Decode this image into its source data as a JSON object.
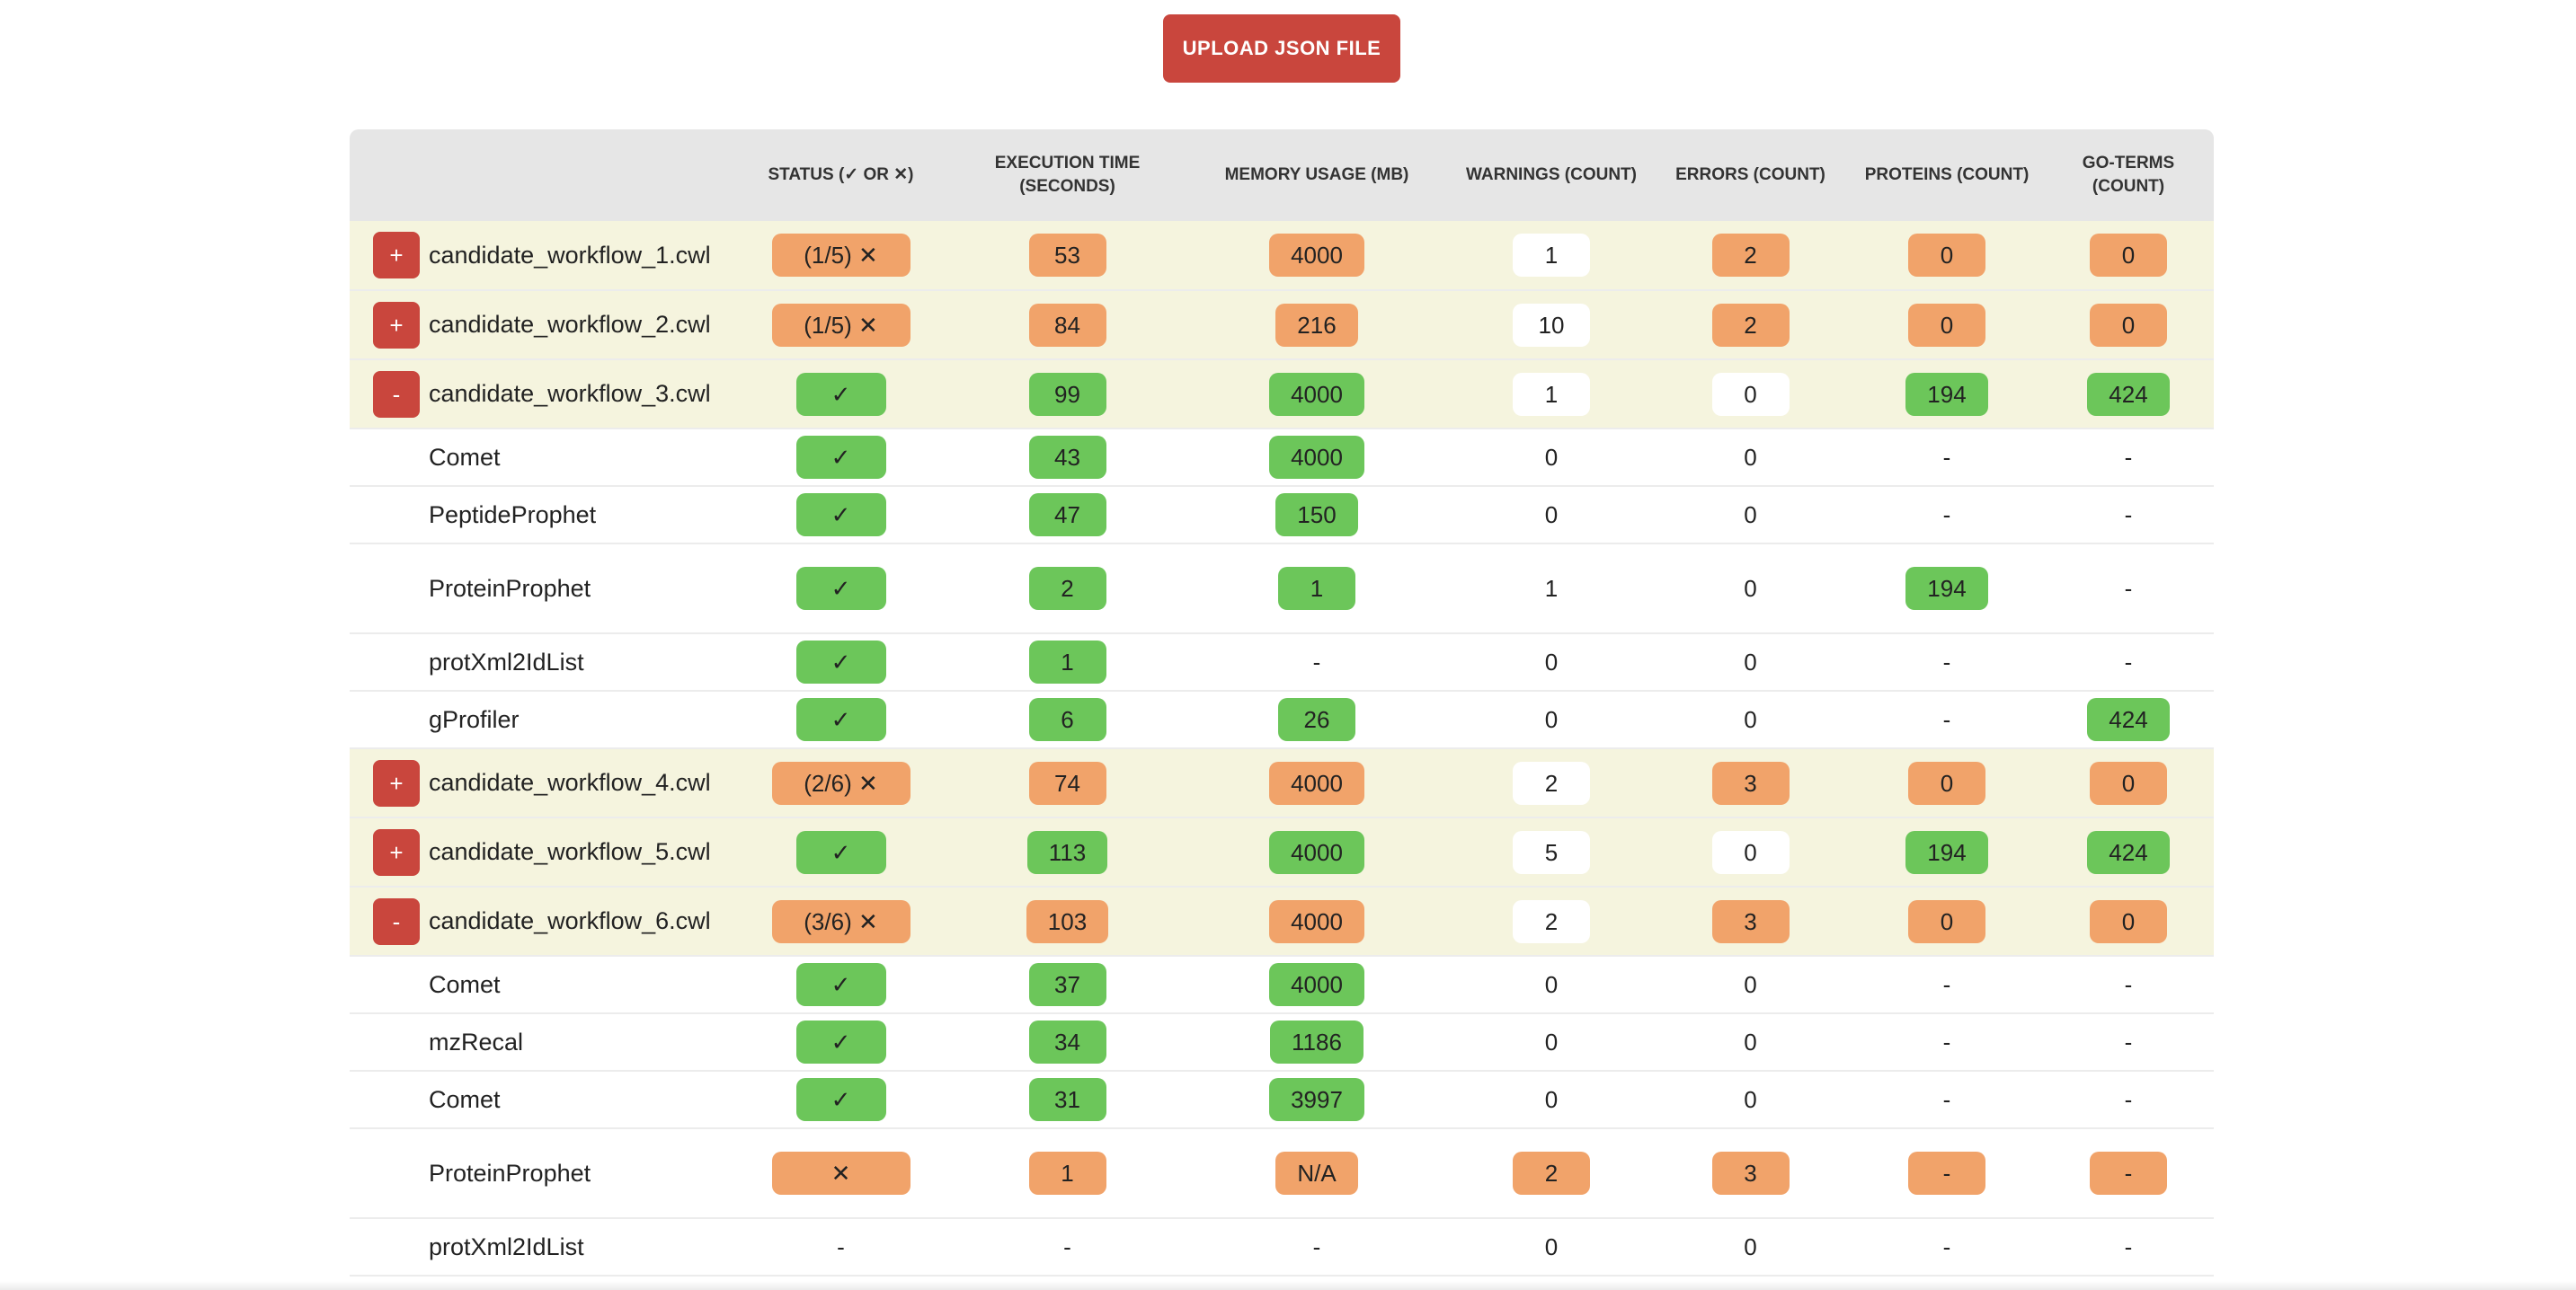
{
  "upload_button": "UPLOAD JSON FILE",
  "colors": {
    "accent": "#c9463d",
    "ok": "#6cc65a",
    "warn": "#f1a36a",
    "workflow_row": "#f5f4de",
    "header": "#e6e6e6"
  },
  "headers": {
    "status": "STATUS (✓ OR ✕)",
    "exec": "EXECUTION TIME (SECONDS)",
    "mem": "MEMORY USAGE (MB)",
    "warn": "WARNINGS (COUNT)",
    "err": "ERRORS (COUNT)",
    "prot": "PROTEINS (COUNT)",
    "go": "GO-TERMS (COUNT)"
  },
  "rows": [
    {
      "kind": "workflow",
      "toggle": "+",
      "name": "candidate_workflow_1.cwl",
      "status": {
        "t": "(1/5) ✕",
        "c": "orange"
      },
      "exec": {
        "t": "53",
        "c": "orange"
      },
      "mem": {
        "t": "4000",
        "c": "orange"
      },
      "warn": {
        "t": "1",
        "c": "white"
      },
      "err": {
        "t": "2",
        "c": "orange"
      },
      "prot": {
        "t": "0",
        "c": "orange"
      },
      "go": {
        "t": "0",
        "c": "orange"
      }
    },
    {
      "kind": "workflow",
      "toggle": "+",
      "name": "candidate_workflow_2.cwl",
      "status": {
        "t": "(1/5) ✕",
        "c": "orange"
      },
      "exec": {
        "t": "84",
        "c": "orange"
      },
      "mem": {
        "t": "216",
        "c": "orange"
      },
      "warn": {
        "t": "10",
        "c": "white"
      },
      "err": {
        "t": "2",
        "c": "orange"
      },
      "prot": {
        "t": "0",
        "c": "orange"
      },
      "go": {
        "t": "0",
        "c": "orange"
      }
    },
    {
      "kind": "workflow",
      "toggle": "-",
      "name": "candidate_workflow_3.cwl",
      "status": {
        "t": "✓",
        "c": "green"
      },
      "exec": {
        "t": "99",
        "c": "green"
      },
      "mem": {
        "t": "4000",
        "c": "green"
      },
      "warn": {
        "t": "1",
        "c": "white"
      },
      "err": {
        "t": "0",
        "c": "white"
      },
      "prot": {
        "t": "194",
        "c": "green"
      },
      "go": {
        "t": "424",
        "c": "green"
      }
    },
    {
      "kind": "step",
      "name": "Comet",
      "status": {
        "t": "✓",
        "c": "green"
      },
      "exec": {
        "t": "43",
        "c": "green"
      },
      "mem": {
        "t": "4000",
        "c": "green"
      },
      "warn": {
        "t": "0",
        "c": ""
      },
      "err": {
        "t": "0",
        "c": ""
      },
      "prot": {
        "t": "-",
        "c": ""
      },
      "go": {
        "t": "-",
        "c": ""
      }
    },
    {
      "kind": "step",
      "name": "PeptideProphet",
      "status": {
        "t": "✓",
        "c": "green"
      },
      "exec": {
        "t": "47",
        "c": "green"
      },
      "mem": {
        "t": "150",
        "c": "green"
      },
      "warn": {
        "t": "0",
        "c": ""
      },
      "err": {
        "t": "0",
        "c": ""
      },
      "prot": {
        "t": "-",
        "c": ""
      },
      "go": {
        "t": "-",
        "c": ""
      }
    },
    {
      "kind": "step-tall",
      "name": "ProteinProphet",
      "status": {
        "t": "✓",
        "c": "green"
      },
      "exec": {
        "t": "2",
        "c": "green"
      },
      "mem": {
        "t": "1",
        "c": "green"
      },
      "warn": {
        "t": "1",
        "c": ""
      },
      "err": {
        "t": "0",
        "c": ""
      },
      "prot": {
        "t": "194",
        "c": "green"
      },
      "go": {
        "t": "-",
        "c": ""
      }
    },
    {
      "kind": "step",
      "name": "protXml2IdList",
      "status": {
        "t": "✓",
        "c": "green"
      },
      "exec": {
        "t": "1",
        "c": "green"
      },
      "mem": {
        "t": "-",
        "c": ""
      },
      "warn": {
        "t": "0",
        "c": ""
      },
      "err": {
        "t": "0",
        "c": ""
      },
      "prot": {
        "t": "-",
        "c": ""
      },
      "go": {
        "t": "-",
        "c": ""
      }
    },
    {
      "kind": "step",
      "name": "gProfiler",
      "status": {
        "t": "✓",
        "c": "green"
      },
      "exec": {
        "t": "6",
        "c": "green"
      },
      "mem": {
        "t": "26",
        "c": "green"
      },
      "warn": {
        "t": "0",
        "c": ""
      },
      "err": {
        "t": "0",
        "c": ""
      },
      "prot": {
        "t": "-",
        "c": ""
      },
      "go": {
        "t": "424",
        "c": "green"
      }
    },
    {
      "kind": "workflow",
      "toggle": "+",
      "name": "candidate_workflow_4.cwl",
      "status": {
        "t": "(2/6) ✕",
        "c": "orange"
      },
      "exec": {
        "t": "74",
        "c": "orange"
      },
      "mem": {
        "t": "4000",
        "c": "orange"
      },
      "warn": {
        "t": "2",
        "c": "white"
      },
      "err": {
        "t": "3",
        "c": "orange"
      },
      "prot": {
        "t": "0",
        "c": "orange"
      },
      "go": {
        "t": "0",
        "c": "orange"
      }
    },
    {
      "kind": "workflow",
      "toggle": "+",
      "name": "candidate_workflow_5.cwl",
      "status": {
        "t": "✓",
        "c": "green"
      },
      "exec": {
        "t": "113",
        "c": "green"
      },
      "mem": {
        "t": "4000",
        "c": "green"
      },
      "warn": {
        "t": "5",
        "c": "white"
      },
      "err": {
        "t": "0",
        "c": "white"
      },
      "prot": {
        "t": "194",
        "c": "green"
      },
      "go": {
        "t": "424",
        "c": "green"
      }
    },
    {
      "kind": "workflow",
      "toggle": "-",
      "name": "candidate_workflow_6.cwl",
      "status": {
        "t": "(3/6) ✕",
        "c": "orange"
      },
      "exec": {
        "t": "103",
        "c": "orange"
      },
      "mem": {
        "t": "4000",
        "c": "orange"
      },
      "warn": {
        "t": "2",
        "c": "white"
      },
      "err": {
        "t": "3",
        "c": "orange"
      },
      "prot": {
        "t": "0",
        "c": "orange"
      },
      "go": {
        "t": "0",
        "c": "orange"
      }
    },
    {
      "kind": "step",
      "name": "Comet",
      "status": {
        "t": "✓",
        "c": "green"
      },
      "exec": {
        "t": "37",
        "c": "green"
      },
      "mem": {
        "t": "4000",
        "c": "green"
      },
      "warn": {
        "t": "0",
        "c": ""
      },
      "err": {
        "t": "0",
        "c": ""
      },
      "prot": {
        "t": "-",
        "c": ""
      },
      "go": {
        "t": "-",
        "c": ""
      }
    },
    {
      "kind": "step",
      "name": "mzRecal",
      "status": {
        "t": "✓",
        "c": "green"
      },
      "exec": {
        "t": "34",
        "c": "green"
      },
      "mem": {
        "t": "1186",
        "c": "green"
      },
      "warn": {
        "t": "0",
        "c": ""
      },
      "err": {
        "t": "0",
        "c": ""
      },
      "prot": {
        "t": "-",
        "c": ""
      },
      "go": {
        "t": "-",
        "c": ""
      }
    },
    {
      "kind": "step",
      "name": "Comet",
      "status": {
        "t": "✓",
        "c": "green"
      },
      "exec": {
        "t": "31",
        "c": "green"
      },
      "mem": {
        "t": "3997",
        "c": "green"
      },
      "warn": {
        "t": "0",
        "c": ""
      },
      "err": {
        "t": "0",
        "c": ""
      },
      "prot": {
        "t": "-",
        "c": ""
      },
      "go": {
        "t": "-",
        "c": ""
      }
    },
    {
      "kind": "step-tall",
      "name": "ProteinProphet",
      "status": {
        "t": "✕",
        "c": "orange"
      },
      "exec": {
        "t": "1",
        "c": "orange"
      },
      "mem": {
        "t": "N/A",
        "c": "orange"
      },
      "warn": {
        "t": "2",
        "c": "orange"
      },
      "err": {
        "t": "3",
        "c": "orange"
      },
      "prot": {
        "t": "-",
        "c": "orange"
      },
      "go": {
        "t": "-",
        "c": "orange"
      }
    },
    {
      "kind": "step",
      "name": "protXml2IdList",
      "status": {
        "t": "-",
        "c": ""
      },
      "exec": {
        "t": "-",
        "c": ""
      },
      "mem": {
        "t": "-",
        "c": ""
      },
      "warn": {
        "t": "0",
        "c": ""
      },
      "err": {
        "t": "0",
        "c": ""
      },
      "prot": {
        "t": "-",
        "c": ""
      },
      "go": {
        "t": "-",
        "c": ""
      }
    }
  ]
}
